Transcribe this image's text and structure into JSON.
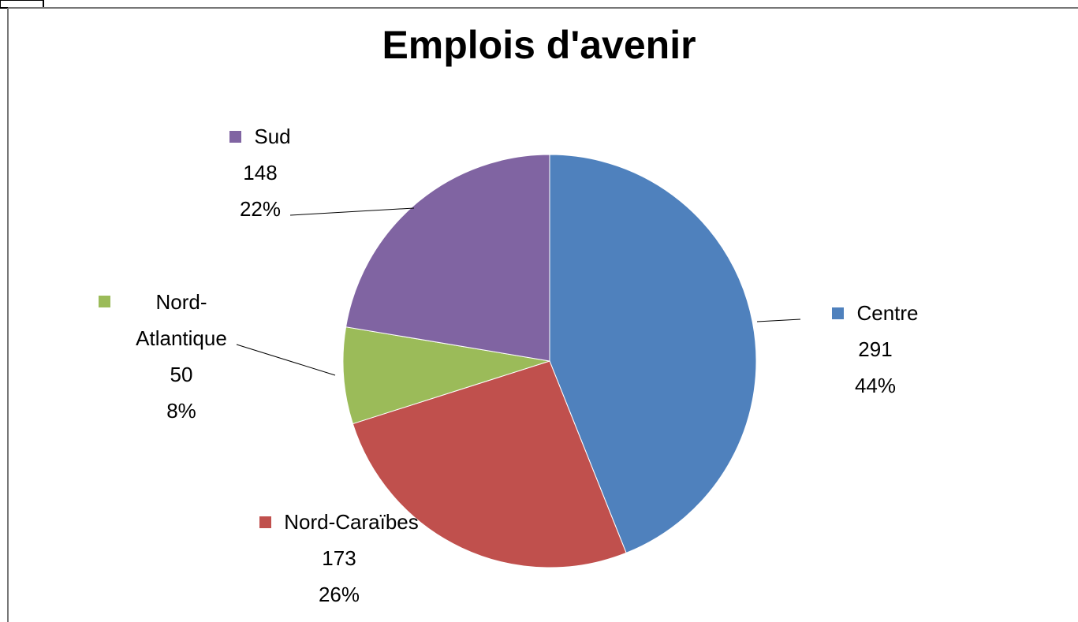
{
  "chart_data": {
    "type": "pie",
    "title": "Emplois d'avenir",
    "categories": [
      "Centre",
      "Nord-Caraïbes",
      "Nord-Atlantique",
      "Sud"
    ],
    "values": [
      291,
      173,
      50,
      148
    ],
    "percent_labels": [
      "44%",
      "26%",
      "8%",
      "22%"
    ],
    "colors": [
      "#4f81bd",
      "#c0504d",
      "#9bbb59",
      "#8064a2"
    ]
  }
}
